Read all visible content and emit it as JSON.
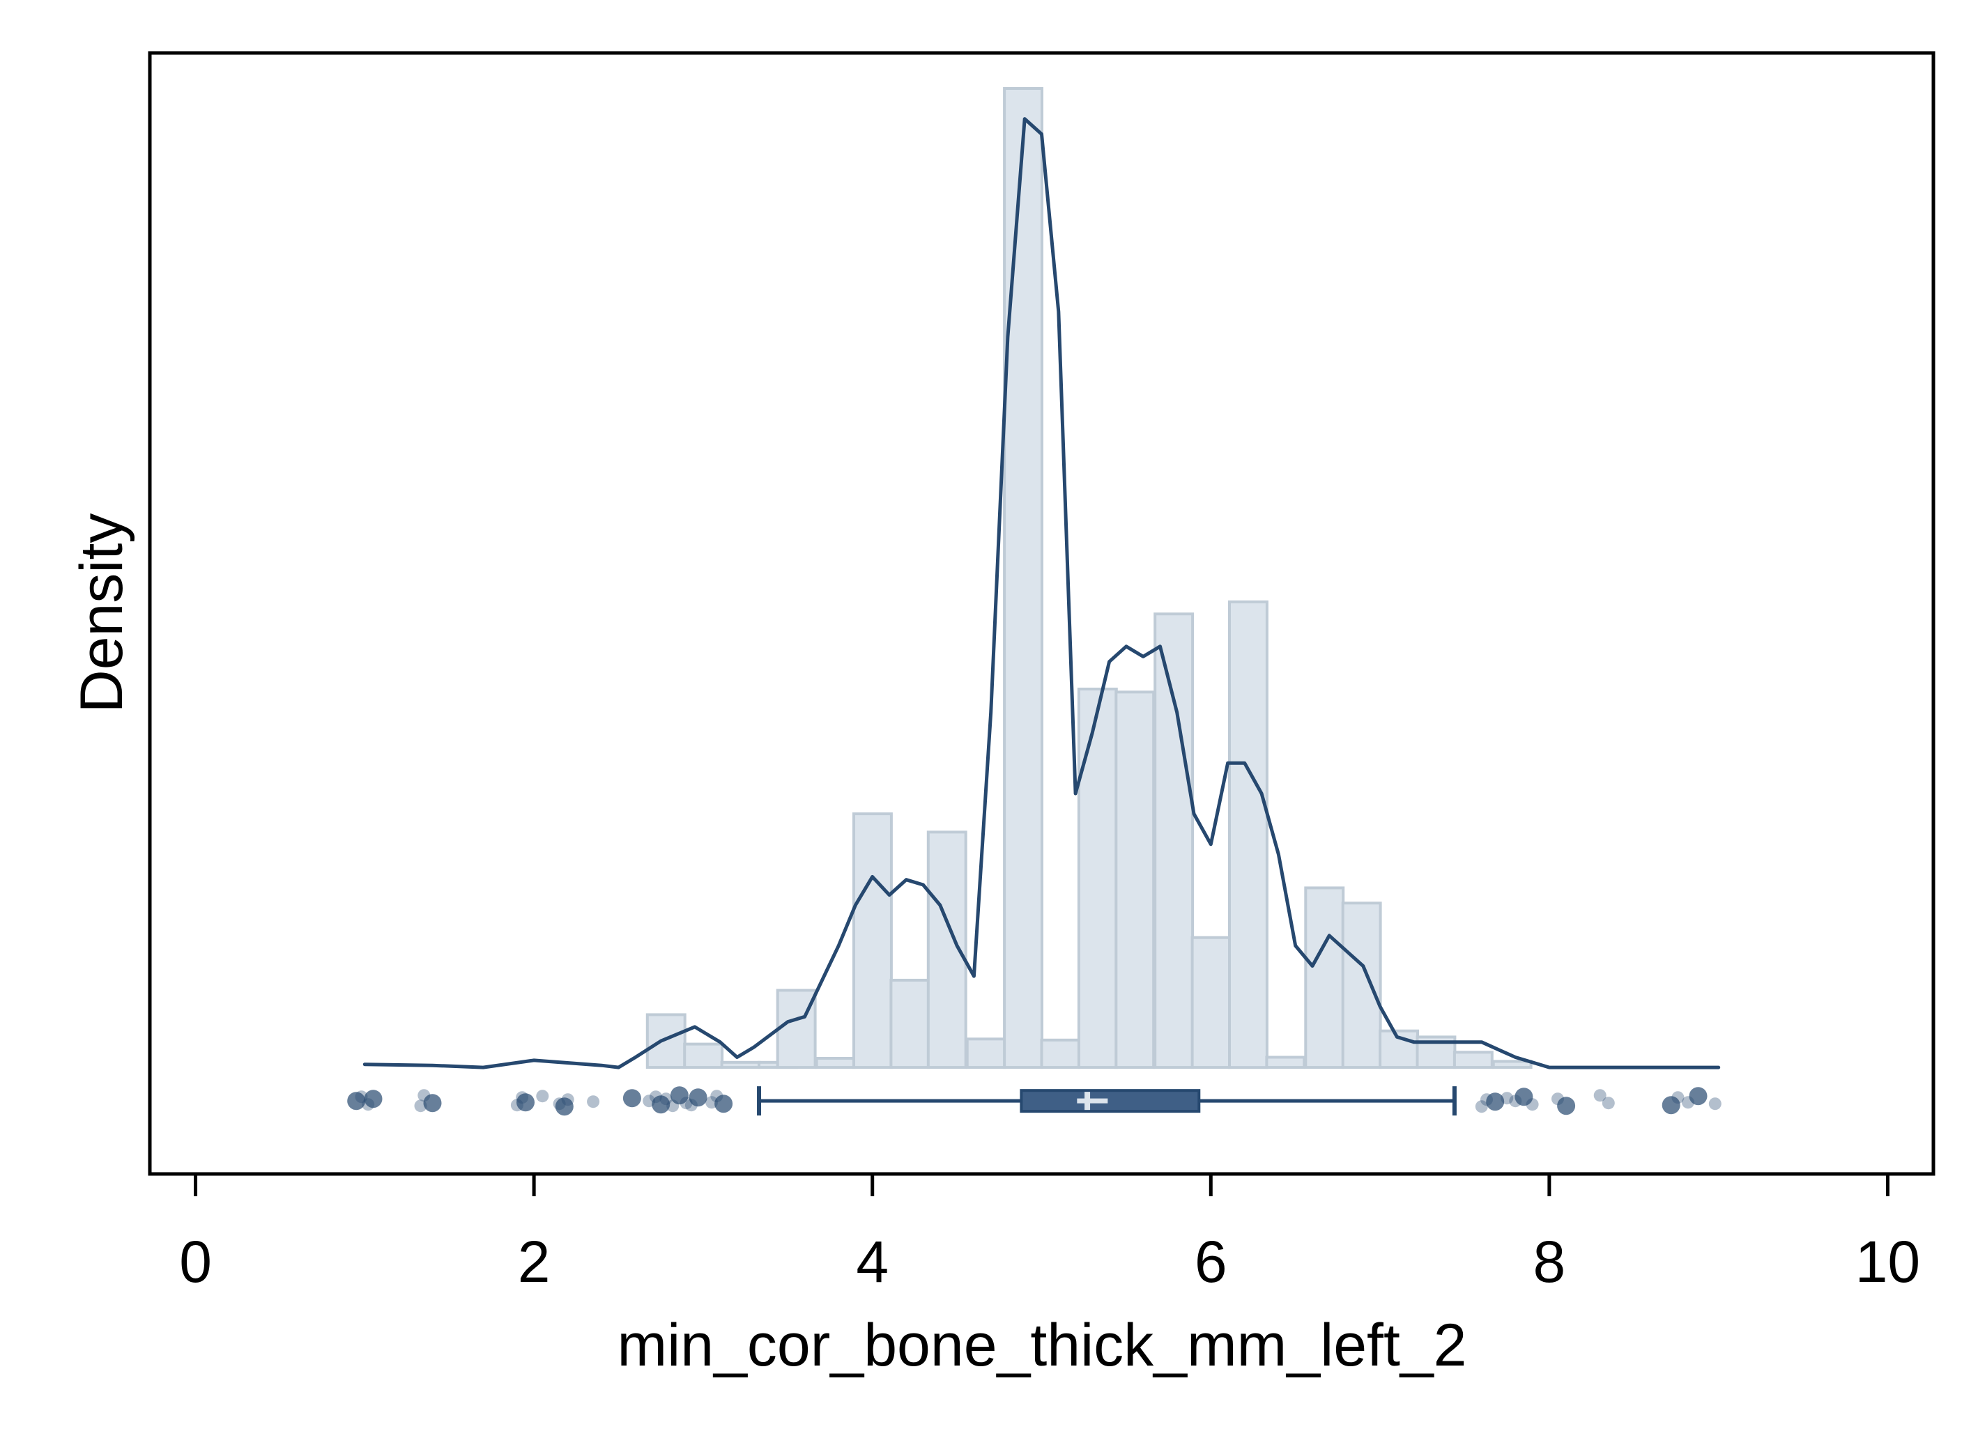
{
  "chart_data": {
    "type": "histogram",
    "xlabel": "min_cor_bone_thick_mm_left_2",
    "ylabel": "Density",
    "xlim": [
      -0.27,
      10.27
    ],
    "ylim": [
      -0.105,
      1.0
    ],
    "x_ticks": [
      0,
      2,
      4,
      6,
      8,
      10
    ],
    "y_ticks_shown": false,
    "grid": false,
    "colors": {
      "bar_fill": "#dce4ec",
      "bar_edge": "#bfcbd6",
      "line": "#26486f",
      "box_fill": "#3f5f86",
      "median_marker": "#dce4ec",
      "points": "#26486f"
    },
    "histogram": {
      "bin_width": 0.222,
      "bins": [
        {
          "x0": 2.67,
          "height": 0.052
        },
        {
          "x0": 2.89,
          "height": 0.023
        },
        {
          "x0": 3.11,
          "height": 0.005
        },
        {
          "x0": 3.33,
          "height": 0.005
        },
        {
          "x0": 3.44,
          "height": 0.076
        },
        {
          "x0": 3.67,
          "height": 0.009
        },
        {
          "x0": 3.89,
          "height": 0.25
        },
        {
          "x0": 4.11,
          "height": 0.086
        },
        {
          "x0": 4.33,
          "height": 0.232
        },
        {
          "x0": 4.56,
          "height": 0.028
        },
        {
          "x0": 4.78,
          "height": 0.965
        },
        {
          "x0": 5.0,
          "height": 0.027
        },
        {
          "x0": 5.22,
          "height": 0.373
        },
        {
          "x0": 5.44,
          "height": 0.37
        },
        {
          "x0": 5.67,
          "height": 0.447
        },
        {
          "x0": 5.89,
          "height": 0.128
        },
        {
          "x0": 6.11,
          "height": 0.459
        },
        {
          "x0": 6.33,
          "height": 0.01
        },
        {
          "x0": 6.56,
          "height": 0.177
        },
        {
          "x0": 6.78,
          "height": 0.162
        },
        {
          "x0": 7.0,
          "height": 0.036
        },
        {
          "x0": 7.22,
          "height": 0.03
        },
        {
          "x0": 7.44,
          "height": 0.015
        },
        {
          "x0": 7.67,
          "height": 0.006
        }
      ]
    },
    "density_curve": {
      "x": [
        1.0,
        1.4,
        1.7,
        2.0,
        2.4,
        2.5,
        2.6,
        2.75,
        2.95,
        3.1,
        3.2,
        3.3,
        3.5,
        3.6,
        3.7,
        3.8,
        3.9,
        4.0,
        4.1,
        4.2,
        4.3,
        4.4,
        4.5,
        4.6,
        4.7,
        4.8,
        4.9,
        5.0,
        5.1,
        5.2,
        5.3,
        5.4,
        5.5,
        5.6,
        5.7,
        5.8,
        5.9,
        6.0,
        6.1,
        6.2,
        6.3,
        6.4,
        6.5,
        6.6,
        6.7,
        6.8,
        6.9,
        7.0,
        7.1,
        7.2,
        7.4,
        7.6,
        7.8,
        8.0,
        8.4,
        8.8,
        9.0
      ],
      "y": [
        0.003,
        0.002,
        0.0,
        0.007,
        0.002,
        0.0,
        0.01,
        0.026,
        0.04,
        0.025,
        0.01,
        0.02,
        0.045,
        0.05,
        0.085,
        0.12,
        0.16,
        0.188,
        0.17,
        0.185,
        0.18,
        0.16,
        0.12,
        0.09,
        0.35,
        0.72,
        0.935,
        0.92,
        0.745,
        0.27,
        0.33,
        0.4,
        0.415,
        0.405,
        0.415,
        0.35,
        0.25,
        0.22,
        0.3,
        0.3,
        0.27,
        0.21,
        0.12,
        0.1,
        0.13,
        0.115,
        0.1,
        0.06,
        0.03,
        0.025,
        0.025,
        0.025,
        0.01,
        0.0,
        0.0,
        0.0,
        0.0
      ]
    },
    "boxplot": {
      "whisker_low": 3.33,
      "q1": 4.88,
      "median": 5.27,
      "mean": 5.3,
      "q3": 5.93,
      "whisker_high": 7.44
    },
    "outliers": [
      0.95,
      0.98,
      1.02,
      1.05,
      1.33,
      1.35,
      1.4,
      1.9,
      1.93,
      1.95,
      2.05,
      2.15,
      2.18,
      2.2,
      2.35,
      2.58,
      2.68,
      2.72,
      2.75,
      2.78,
      2.82,
      2.86,
      2.9,
      2.93,
      2.97,
      3.05,
      3.08,
      3.12,
      7.6,
      7.63,
      7.68,
      7.75,
      7.8,
      7.85,
      7.9,
      8.05,
      8.1,
      8.3,
      8.35,
      8.72,
      8.76,
      8.82,
      8.88,
      8.98
    ]
  }
}
